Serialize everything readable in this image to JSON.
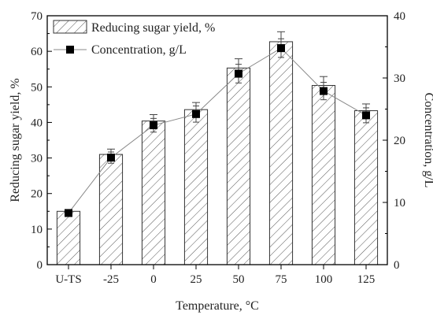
{
  "chart_data": {
    "type": "bar",
    "categories": [
      "U-TS",
      "-25",
      "0",
      "25",
      "50",
      "75",
      "100",
      "125"
    ],
    "xlabel": "Temperature, °C",
    "y_left_label": "Reducing sugar yield, %",
    "y_right_label": "Concentration, g/L",
    "y_left_lim": [
      0,
      70
    ],
    "y_right_lim": [
      0,
      40
    ],
    "y_left_ticks": [
      0,
      10,
      20,
      30,
      40,
      50,
      60,
      70
    ],
    "y_right_ticks": [
      0,
      10,
      20,
      30,
      40
    ],
    "grid": false,
    "legend_position": "top-left",
    "series": [
      {
        "name": "Reducing sugar yield, %",
        "kind": "bar",
        "axis": "left",
        "values": [
          15.0,
          31.0,
          40.4,
          43.6,
          55.3,
          62.7,
          50.4,
          43.3
        ],
        "errors": [
          0.5,
          1.5,
          1.8,
          2.0,
          2.6,
          2.8,
          2.5,
          1.9
        ]
      },
      {
        "name": "Concentration, g/L",
        "kind": "line",
        "axis": "right",
        "marker": "square",
        "values": [
          8.3,
          17.2,
          22.4,
          24.2,
          30.7,
          34.8,
          27.9,
          24.0
        ],
        "errors": [
          0.4,
          0.9,
          1.1,
          1.3,
          1.5,
          1.5,
          1.4,
          1.2
        ]
      }
    ],
    "colors": {
      "bar_fill": "#ffffff",
      "bar_stroke": "#333333",
      "hatch": "#555555",
      "line": "#888888",
      "marker": "#000000",
      "axis": "#000000",
      "error": "#444444"
    }
  }
}
